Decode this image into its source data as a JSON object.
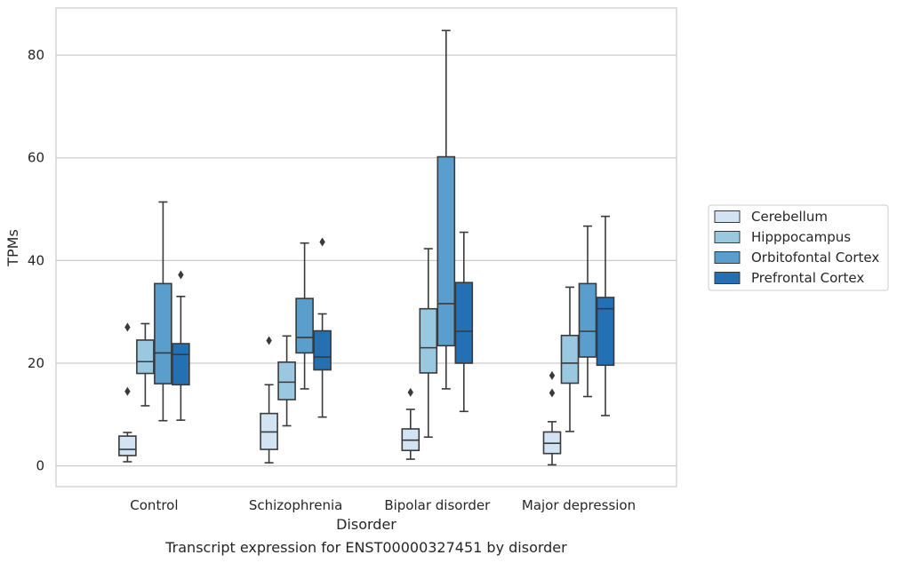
{
  "chart_data": {
    "type": "box",
    "caption": "Transcript expression for ENST00000327451 by disorder",
    "xlabel": "Disorder",
    "ylabel": "TPMs",
    "ylim": [
      -4,
      89
    ],
    "yticks": [
      0,
      20,
      40,
      60,
      80
    ],
    "grid": "horizontal",
    "legend_position": "right",
    "categories": [
      "Control",
      "Schizophrenia",
      "Bipolar disorder",
      "Major depression"
    ],
    "series": [
      {
        "name": "Cerebellum",
        "color": "#d2e3f3",
        "boxes": [
          {
            "whislo": 0.8,
            "q1": 2.0,
            "med": 3.2,
            "q3": 5.8,
            "whishi": 6.5,
            "fliers": [
              14.5,
              27.0
            ]
          },
          {
            "whislo": 0.6,
            "q1": 3.2,
            "med": 6.6,
            "q3": 10.2,
            "whishi": 15.8,
            "fliers": [
              24.4
            ]
          },
          {
            "whislo": 1.3,
            "q1": 3.0,
            "med": 5.0,
            "q3": 7.2,
            "whishi": 11.0,
            "fliers": [
              14.3
            ]
          },
          {
            "whislo": 0.2,
            "q1": 2.4,
            "med": 4.4,
            "q3": 6.6,
            "whishi": 8.6,
            "fliers": [
              14.2,
              17.6
            ]
          }
        ]
      },
      {
        "name": "Hipppocampus",
        "color": "#9ac8e0",
        "boxes": [
          {
            "whislo": 11.7,
            "q1": 18.0,
            "med": 20.3,
            "q3": 24.5,
            "whishi": 27.7,
            "fliers": []
          },
          {
            "whislo": 7.8,
            "q1": 12.9,
            "med": 16.3,
            "q3": 20.2,
            "whishi": 25.3,
            "fliers": []
          },
          {
            "whislo": 5.6,
            "q1": 18.1,
            "med": 23.0,
            "q3": 30.6,
            "whishi": 42.3,
            "fliers": []
          },
          {
            "whislo": 6.7,
            "q1": 16.1,
            "med": 20.0,
            "q3": 25.4,
            "whishi": 34.8,
            "fliers": []
          }
        ]
      },
      {
        "name": "Orbitofontal Cortex",
        "color": "#5a9ecd",
        "boxes": [
          {
            "whislo": 8.8,
            "q1": 16.0,
            "med": 22.0,
            "q3": 35.5,
            "whishi": 51.4,
            "fliers": []
          },
          {
            "whislo": 15.0,
            "q1": 22.0,
            "med": 25.0,
            "q3": 32.6,
            "whishi": 43.4,
            "fliers": []
          },
          {
            "whislo": 15.0,
            "q1": 23.4,
            "med": 31.6,
            "q3": 60.2,
            "whishi": 84.8,
            "fliers": []
          },
          {
            "whislo": 13.5,
            "q1": 21.2,
            "med": 26.2,
            "q3": 35.5,
            "whishi": 46.7,
            "fliers": []
          }
        ]
      },
      {
        "name": "Prefrontal Cortex",
        "color": "#2370b4",
        "boxes": [
          {
            "whislo": 8.9,
            "q1": 15.8,
            "med": 21.7,
            "q3": 23.8,
            "whishi": 33.0,
            "fliers": [
              37.2
            ]
          },
          {
            "whislo": 9.5,
            "q1": 18.7,
            "med": 21.2,
            "q3": 26.3,
            "whishi": 29.6,
            "fliers": [
              43.6
            ]
          },
          {
            "whislo": 10.6,
            "q1": 20.0,
            "med": 26.2,
            "q3": 35.7,
            "whishi": 45.5,
            "fliers": []
          },
          {
            "whislo": 9.8,
            "q1": 19.6,
            "med": 30.6,
            "q3": 32.8,
            "whishi": 48.6,
            "fliers": []
          }
        ]
      }
    ]
  }
}
